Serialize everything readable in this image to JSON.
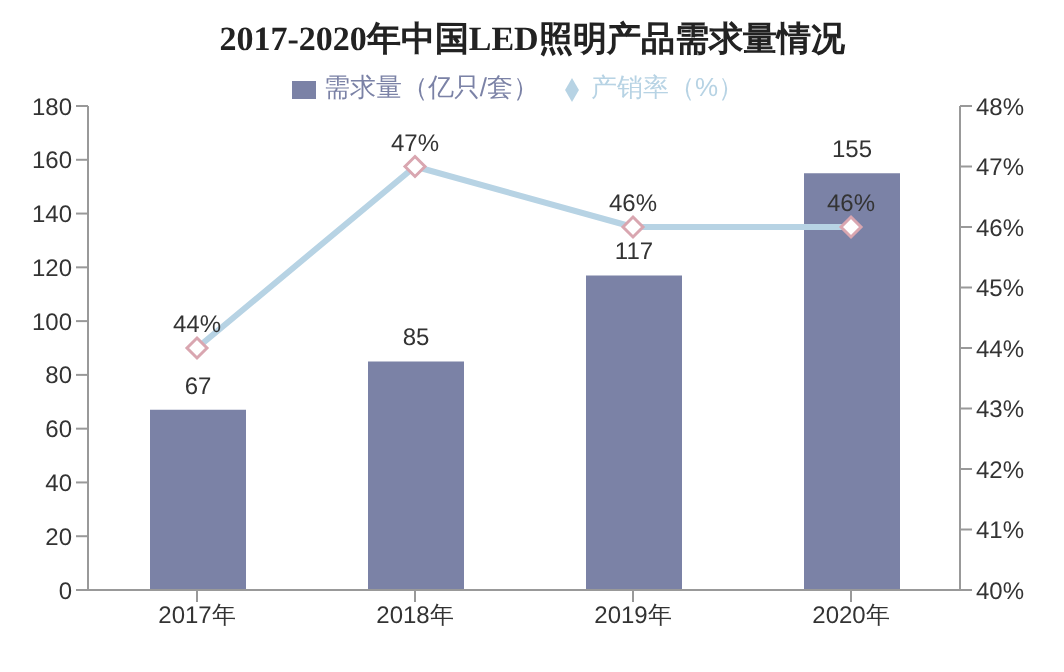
{
  "chart_data": {
    "type": "bar",
    "title": "2017-2020年中国LED照明产品需求量情况",
    "categories": [
      "2017年",
      "2018年",
      "2019年",
      "2020年"
    ],
    "series": [
      {
        "name": "需求量（亿只/套）",
        "color": "#7b82a6",
        "values": [
          67,
          85,
          117,
          155
        ],
        "value_labels": [
          "67",
          "85",
          "117",
          "155"
        ]
      },
      {
        "name": "产销率（%）",
        "type": "line",
        "axis": "y2",
        "color": "#b7d3e4",
        "marker": "diamond",
        "line_style": "solid",
        "values": [
          44,
          47,
          46,
          46
        ],
        "value_labels": [
          "44%",
          "47%",
          "46%",
          "46%"
        ]
      }
    ],
    "ylim": [
      0,
      180
    ],
    "yticks": [
      0,
      20,
      40,
      60,
      80,
      100,
      120,
      140,
      160,
      180
    ],
    "y2lim": [
      40,
      48
    ],
    "y2ticks": [
      {
        "value": 40,
        "label": "40%"
      },
      {
        "value": 41,
        "label": "41%"
      },
      {
        "value": 42,
        "label": "42%"
      },
      {
        "value": 43,
        "label": "43%"
      },
      {
        "value": 44,
        "label": "44%"
      },
      {
        "value": 45,
        "label": "45%"
      },
      {
        "value": 46,
        "label": "46%"
      },
      {
        "value": 47,
        "label": "47%"
      },
      {
        "value": 48,
        "label": "48%"
      }
    ],
    "grid": false,
    "legend": "top"
  }
}
